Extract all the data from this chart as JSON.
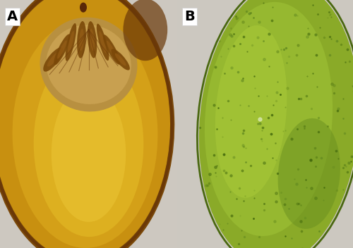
{
  "fig_width": 5.0,
  "fig_height": 3.52,
  "dpi": 100,
  "bg_color": "#cdc8c0",
  "panel_A_label": "A",
  "panel_B_label": "B",
  "label_fontsize": 14,
  "label_color": "#000000",
  "panel_A_bg": "#c0b8a8",
  "panel_B_bg": "#ccc8c0",
  "mango_A_main": "#d4a010",
  "mango_A_light": "#e8c040",
  "mango_A_dark": "#b07808",
  "mango_A_edge": "#7a4808",
  "mango_A_seed_bg": "#c09040",
  "mango_A_slot": "#8b5a10",
  "mango_B_main": "#9ab830",
  "mango_B_dark": "#6a8818",
  "mango_B_light": "#b8d840",
  "mango_B_edge": "#4a6810",
  "divider_color": "#e0ddd8"
}
